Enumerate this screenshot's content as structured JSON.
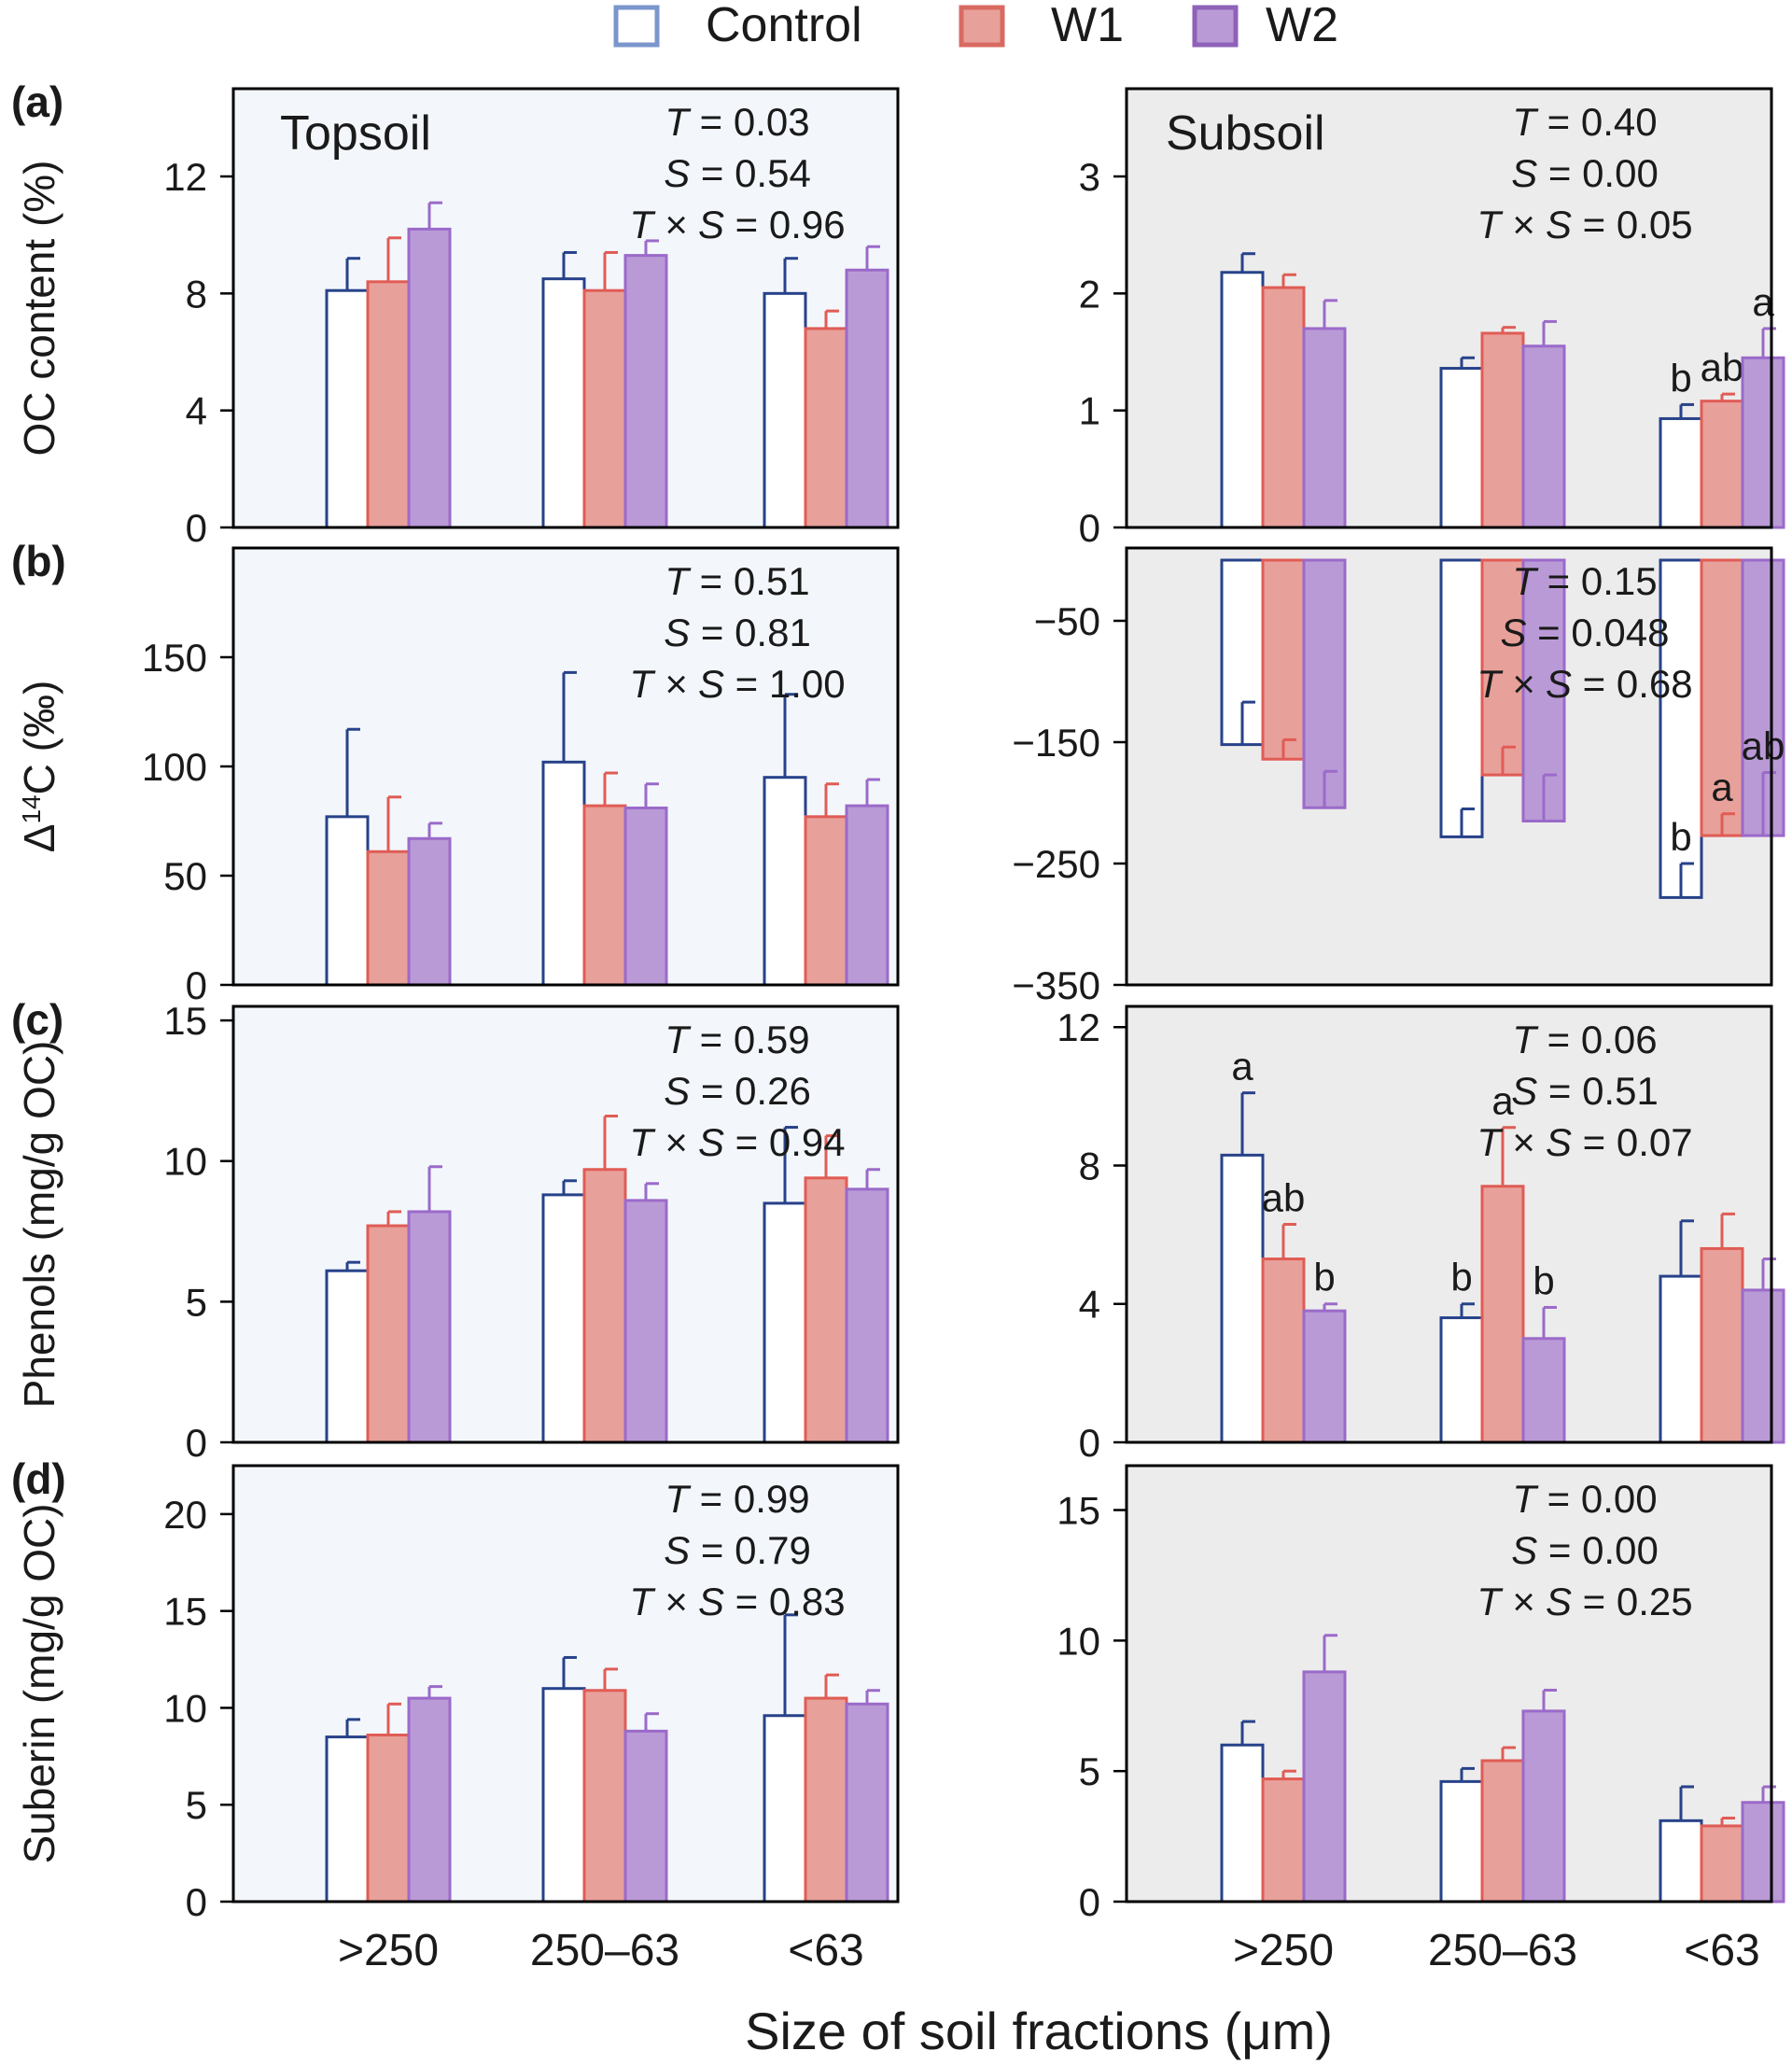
{
  "legend": {
    "entries": [
      {
        "name": "Control",
        "fill": "#ffffff",
        "stroke": "#7b96cc"
      },
      {
        "name": "W1",
        "fill": "#e8a09a",
        "stroke": "#d86a62"
      },
      {
        "name": "W2",
        "fill": "#b99ad6",
        "stroke": "#8e62b8"
      }
    ]
  },
  "x_axis_title": "Size of soil fractions (μm)",
  "colors": {
    "topsoil_bg": "#f3f7fc",
    "subsoil_bg": "#ececec",
    "control_edge": "#27428a",
    "w1_edge": "#e05c55",
    "w2_edge": "#9b6ac9"
  },
  "chart_data": [
    {
      "type": "bar",
      "panel": "(a)",
      "column": "Topsoil",
      "title": "Topsoil",
      "ylabel": "OC content (%)",
      "ylim": [
        0,
        15
      ],
      "yticks": [
        0,
        4,
        8,
        12
      ],
      "categories": [
        ">250",
        "250–63",
        "<63"
      ],
      "series": [
        {
          "name": "Control",
          "values": [
            8.1,
            8.5,
            8.0
          ],
          "errors": [
            1.1,
            0.9,
            1.2
          ],
          "letters": [
            "",
            "",
            ""
          ]
        },
        {
          "name": "W1",
          "values": [
            8.4,
            8.1,
            6.8
          ],
          "errors": [
            1.5,
            1.3,
            0.6
          ],
          "letters": [
            "",
            "",
            ""
          ]
        },
        {
          "name": "W2",
          "values": [
            10.2,
            9.3,
            8.8
          ],
          "errors": [
            0.9,
            0.5,
            0.8
          ],
          "letters": [
            "",
            "",
            ""
          ]
        }
      ],
      "stats": [
        {
          "var": "T",
          "value": " = 0.03"
        },
        {
          "var": "S",
          "value": " = 0.54"
        },
        {
          "var": "T × S",
          "value": " = 0.96"
        }
      ]
    },
    {
      "type": "bar",
      "panel": "",
      "column": "Subsoil",
      "title": "Subsoil",
      "ylabel": "",
      "ylim": [
        0,
        3.75
      ],
      "yticks": [
        0,
        1,
        2,
        3
      ],
      "categories": [
        ">250",
        "250–63",
        "<63"
      ],
      "series": [
        {
          "name": "Control",
          "values": [
            2.18,
            1.36,
            0.93
          ],
          "errors": [
            0.16,
            0.09,
            0.12
          ],
          "letters": [
            "",
            "",
            "b"
          ]
        },
        {
          "name": "W1",
          "values": [
            2.05,
            1.66,
            1.08
          ],
          "errors": [
            0.11,
            0.05,
            0.06
          ],
          "letters": [
            "",
            "",
            "ab"
          ]
        },
        {
          "name": "W2",
          "values": [
            1.7,
            1.55,
            1.45
          ],
          "errors": [
            0.24,
            0.21,
            0.25
          ],
          "letters": [
            "",
            "",
            "a"
          ]
        }
      ],
      "stats": [
        {
          "var": "T",
          "value": " = 0.40"
        },
        {
          "var": "S",
          "value": " = 0.00"
        },
        {
          "var": "T × S",
          "value": " = 0.05"
        }
      ]
    },
    {
      "type": "bar",
      "panel": "(b)",
      "column": "Topsoil",
      "title": "",
      "ylabel": "Δ14C (‰)",
      "ylim": [
        0,
        200
      ],
      "yticks": [
        0,
        50,
        100,
        150
      ],
      "categories": [
        ">250",
        "250–63",
        "<63"
      ],
      "series": [
        {
          "name": "Control",
          "values": [
            77,
            102,
            95
          ],
          "errors": [
            40,
            41,
            38
          ],
          "letters": [
            "",
            "",
            ""
          ]
        },
        {
          "name": "W1",
          "values": [
            61,
            82,
            77
          ],
          "errors": [
            25,
            15,
            15
          ],
          "letters": [
            "",
            "",
            ""
          ]
        },
        {
          "name": "W2",
          "values": [
            67,
            81,
            82
          ],
          "errors": [
            7,
            11,
            12
          ],
          "letters": [
            "",
            "",
            ""
          ]
        }
      ],
      "stats": [
        {
          "var": "T",
          "value": " = 0.51"
        },
        {
          "var": "S",
          "value": " = 0.81"
        },
        {
          "var": "T × S",
          "value": " = 1.00"
        }
      ]
    },
    {
      "type": "bar",
      "panel": "",
      "column": "Subsoil",
      "title": "",
      "ylabel": "",
      "ylim": [
        -350,
        10
      ],
      "yticks": [
        -350,
        -250,
        -150,
        -50
      ],
      "categories": [
        ">250",
        "250–63",
        "<63"
      ],
      "series": [
        {
          "name": "Control",
          "values": [
            -152,
            -228,
            -278
          ],
          "errors": [
            35,
            23,
            28
          ],
          "letters": [
            "",
            "",
            "b"
          ]
        },
        {
          "name": "W1",
          "values": [
            -164,
            -177,
            -227
          ],
          "errors": [
            16,
            23,
            18
          ],
          "letters": [
            "",
            "",
            "a"
          ]
        },
        {
          "name": "W2",
          "values": [
            -204,
            -215,
            -227
          ],
          "errors": [
            30,
            38,
            52
          ],
          "letters": [
            "",
            "",
            "ab"
          ]
        }
      ],
      "stats": [
        {
          "var": "T",
          "value": " = 0.15"
        },
        {
          "var": "S",
          "value": " = 0.048"
        },
        {
          "var": "T × S",
          "value": " = 0.68"
        }
      ]
    },
    {
      "type": "bar",
      "panel": "(c)",
      "column": "Topsoil",
      "title": "",
      "ylabel": "Phenols (mg/g OC)",
      "ylim": [
        0,
        15.5
      ],
      "yticks": [
        0,
        5,
        10,
        15
      ],
      "categories": [
        ">250",
        "250–63",
        "<63"
      ],
      "series": [
        {
          "name": "Control",
          "values": [
            6.1,
            8.8,
            8.5
          ],
          "errors": [
            0.3,
            0.5,
            2.7
          ],
          "letters": [
            "",
            "",
            ""
          ]
        },
        {
          "name": "W1",
          "values": [
            7.7,
            9.7,
            9.4
          ],
          "errors": [
            0.5,
            1.9,
            1.5
          ],
          "letters": [
            "",
            "",
            ""
          ]
        },
        {
          "name": "W2",
          "values": [
            8.2,
            8.6,
            9.0
          ],
          "errors": [
            1.6,
            0.6,
            0.7
          ],
          "letters": [
            "",
            "",
            ""
          ]
        }
      ],
      "stats": [
        {
          "var": "T",
          "value": " = 0.59"
        },
        {
          "var": "S",
          "value": " = 0.26"
        },
        {
          "var": "T × S",
          "value": " = 0.94"
        }
      ]
    },
    {
      "type": "bar",
      "panel": "",
      "column": "Subsoil",
      "title": "",
      "ylabel": "",
      "ylim": [
        0,
        12.6
      ],
      "yticks": [
        0,
        4,
        8,
        12
      ],
      "categories": [
        ">250",
        "250–63",
        "<63"
      ],
      "series": [
        {
          "name": "Control",
          "values": [
            8.3,
            3.6,
            4.8
          ],
          "errors": [
            1.8,
            0.4,
            1.6
          ],
          "letters": [
            "a",
            "b",
            ""
          ]
        },
        {
          "name": "W1",
          "values": [
            5.3,
            7.4,
            5.6
          ],
          "errors": [
            1.0,
            1.7,
            1.0
          ],
          "letters": [
            "ab",
            "a",
            ""
          ]
        },
        {
          "name": "W2",
          "values": [
            3.8,
            3.0,
            4.4
          ],
          "errors": [
            0.2,
            0.9,
            0.9
          ],
          "letters": [
            "b",
            "b",
            ""
          ]
        }
      ],
      "stats": [
        {
          "var": "T",
          "value": " = 0.06"
        },
        {
          "var": "S",
          "value": " = 0.51"
        },
        {
          "var": "T × S",
          "value": " = 0.07"
        }
      ]
    },
    {
      "type": "bar",
      "panel": "(d)",
      "column": "Topsoil",
      "title": "",
      "ylabel": "Suberin (mg/g OC)",
      "ylim": [
        0,
        22.5
      ],
      "yticks": [
        0,
        5,
        10,
        15,
        20
      ],
      "categories": [
        ">250",
        "250–63",
        "<63"
      ],
      "series": [
        {
          "name": "Control",
          "values": [
            8.5,
            11.0,
            9.6
          ],
          "errors": [
            0.9,
            1.6,
            5.2
          ],
          "letters": [
            "",
            "",
            ""
          ]
        },
        {
          "name": "W1",
          "values": [
            8.6,
            10.9,
            10.5
          ],
          "errors": [
            1.6,
            1.1,
            1.2
          ],
          "letters": [
            "",
            "",
            ""
          ]
        },
        {
          "name": "W2",
          "values": [
            10.5,
            8.8,
            10.2
          ],
          "errors": [
            0.6,
            0.9,
            0.7
          ],
          "letters": [
            "",
            "",
            ""
          ]
        }
      ],
      "stats": [
        {
          "var": "T",
          "value": " = 0.99"
        },
        {
          "var": "S",
          "value": " = 0.79"
        },
        {
          "var": "T × S",
          "value": " = 0.83"
        }
      ]
    },
    {
      "type": "bar",
      "panel": "",
      "column": "Subsoil",
      "title": "",
      "ylabel": "",
      "ylim": [
        0,
        16.7
      ],
      "yticks": [
        0,
        5,
        10,
        15
      ],
      "categories": [
        ">250",
        "250–63",
        "<63"
      ],
      "series": [
        {
          "name": "Control",
          "values": [
            6.0,
            4.6,
            3.1
          ],
          "errors": [
            0.9,
            0.5,
            1.3
          ],
          "letters": [
            "",
            "",
            ""
          ]
        },
        {
          "name": "W1",
          "values": [
            4.7,
            5.4,
            2.9
          ],
          "errors": [
            0.3,
            0.5,
            0.3
          ],
          "letters": [
            "",
            "",
            ""
          ]
        },
        {
          "name": "W2",
          "values": [
            8.8,
            7.3,
            3.8
          ],
          "errors": [
            1.4,
            0.8,
            0.6
          ],
          "letters": [
            "",
            "",
            ""
          ]
        }
      ],
      "stats": [
        {
          "var": "T",
          "value": " = 0.00"
        },
        {
          "var": "S",
          "value": " = 0.00"
        },
        {
          "var": "T × S",
          "value": " = 0.25"
        }
      ]
    }
  ]
}
